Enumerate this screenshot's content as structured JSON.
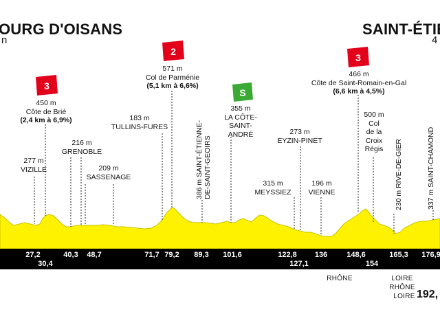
{
  "header": {
    "start_town": "OURG D'OISANS",
    "start_sub": "n",
    "finish_town": "SAINT-ÉTIE",
    "finish_sub": "4"
  },
  "cols": {
    "brie": {
      "category": "3",
      "alt": "450 m",
      "name": "Côte de Brié",
      "stats": "(2,4 km à 6,9%)",
      "color": "#e2001a"
    },
    "parmenie": {
      "category": "2",
      "alt": "571 m",
      "name": "Col de Parménie",
      "stats": "(5,1 km à 6,6%)",
      "color": "#e2001a"
    },
    "romain": {
      "category": "3",
      "alt": "466 m",
      "name": "Côte de Saint-Romain-en-Gal",
      "stats": "(6,6 km à 4,5%)",
      "color": "#e2001a"
    },
    "sprint": {
      "category": "S",
      "color": "#3aaa35"
    }
  },
  "places": {
    "vizille": {
      "alt": "277 m",
      "name": "VIZILLE"
    },
    "grenoble": {
      "alt": "216 m",
      "name": "GRENOBLE"
    },
    "sassenage": {
      "alt": "209 m",
      "name": "SASSENAGE"
    },
    "tullins": {
      "alt": "183 m",
      "name": "TULLINS-FURES"
    },
    "geoirs": {
      "text": "386 m SAINT-ÉTIENNE-",
      "text2": "DE-SAINT-GEOIRS"
    },
    "cote_andre": {
      "alt": "355 m",
      "line1": "LA CÔTE-",
      "line2": "SAINT-",
      "line3": "ANDRÉ"
    },
    "eyzin": {
      "alt": "273 m",
      "name": "EYZIN-PINET"
    },
    "meyssiez": {
      "alt": "315 m",
      "name": "MEYSSIEZ"
    },
    "vienne": {
      "alt": "196 m",
      "name": "VIENNE"
    },
    "croix_regis": {
      "alt": "500 m",
      "line1": "Col",
      "line2": "de la",
      "line3": "Croix",
      "line4": "Régis"
    },
    "rive_gier": {
      "text": "230 m RIVE-DE-GIER"
    },
    "chamond": {
      "text": "337 m SAINT-CHAMOND"
    }
  },
  "km_marks": [
    "27,2",
    "30,4",
    "40,3",
    "48,7",
    "71,7",
    "79,2",
    "89,3",
    "101,6",
    "122,8",
    "127,1",
    "136",
    "148,6",
    "154",
    "165,3",
    "176,9"
  ],
  "rivers": {
    "rhone1": "RHÔNE",
    "loire1": "LOIRE",
    "rhone2": "RHÔNE",
    "loire2": "LOIRE"
  },
  "total": "192,",
  "colors": {
    "profile": "#fff200",
    "profile_edge": "#c9c200",
    "bar": "#000000"
  }
}
